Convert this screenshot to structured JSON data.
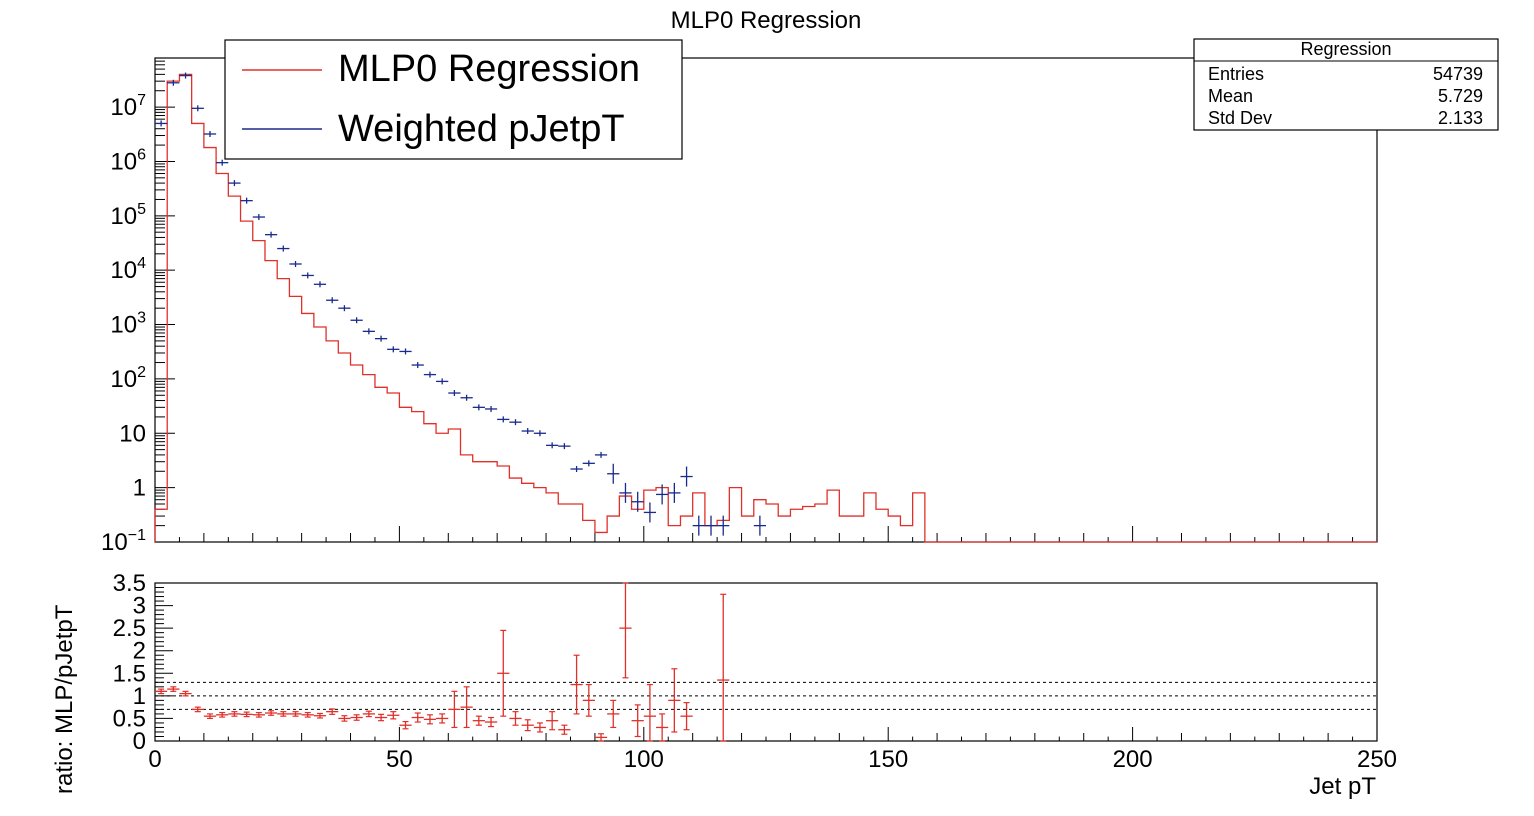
{
  "colors": {
    "mlp": "#e0302a",
    "weighted": "#1a2a8c",
    "axis": "#000000",
    "background": "#ffffff"
  },
  "chart_data": [
    {
      "type": "line",
      "title": "MLP0 Regression",
      "ylog": true,
      "xlim": [
        0,
        250
      ],
      "ylim": [
        0.1,
        80000000
      ],
      "y_tick_labels": [
        {
          "v": 0.1,
          "base": "10",
          "exp": "−1"
        },
        {
          "v": 1,
          "base": "1",
          "exp": ""
        },
        {
          "v": 10,
          "base": "10",
          "exp": ""
        },
        {
          "v": 100,
          "base": "10",
          "exp": "2"
        },
        {
          "v": 1000,
          "base": "10",
          "exp": "3"
        },
        {
          "v": 10000,
          "base": "10",
          "exp": "4"
        },
        {
          "v": 100000,
          "base": "10",
          "exp": "5"
        },
        {
          "v": 1000000,
          "base": "10",
          "exp": "6"
        },
        {
          "v": 10000000,
          "base": "10",
          "exp": "7"
        }
      ],
      "legend": {
        "placement": "top-left",
        "entries": [
          "MLP0 Regression",
          "Weighted pJetpT"
        ]
      },
      "stats_box": {
        "title": "Regression",
        "rows": [
          {
            "label": "Entries",
            "value": "54739"
          },
          {
            "label": "Mean",
            "value": "5.729"
          },
          {
            "label": "Std Dev",
            "value": "2.133"
          }
        ]
      },
      "bin_width": 2.5,
      "series": [
        {
          "name": "MLP0 Regression",
          "style": "step",
          "values": [
            0.4,
            30000000.0,
            40000000.0,
            5000000.0,
            1800000.0,
            600000.0,
            230000.0,
            80000.0,
            35000.0,
            15000.0,
            7000.0,
            3300.0,
            1600.0,
            900,
            500,
            300,
            180,
            120,
            70,
            55,
            30,
            25,
            15,
            10,
            12,
            4,
            3,
            3,
            2.5,
            1.5,
            1.2,
            1,
            0.8,
            0.5,
            0.5,
            0.25,
            0.15,
            0.3,
            0.7,
            0.4,
            0.9,
            1,
            0.2,
            0.3,
            0.8,
            0.2,
            0.25,
            1,
            0.3,
            0.6,
            0.5,
            0.3,
            0.4,
            0.45,
            0.5,
            0.9,
            0.3,
            0.3,
            0.8,
            0.4,
            0.3,
            0.2,
            0.8,
            0.1,
            0.1,
            0.1,
            0.1,
            0.1,
            0.1,
            0.1,
            0.1,
            0.1,
            0.1,
            0.1,
            0.1,
            0.1,
            0.1,
            0.1,
            0.1,
            0.1,
            0.1,
            0.1,
            0.1,
            0.1,
            0.1,
            0.1,
            0.1,
            0.1,
            0.1,
            0.1,
            0.1,
            0.1,
            0.1,
            0.1,
            0.1,
            0.1,
            0.1,
            0.1,
            0.1,
            0.1
          ]
        },
        {
          "name": "Weighted pJetpT",
          "style": "points",
          "points": [
            {
              "x": 1.25,
              "y": 5000000
            },
            {
              "x": 3.75,
              "y": 28000000
            },
            {
              "x": 6.25,
              "y": 38000000
            },
            {
              "x": 8.75,
              "y": 9500000
            },
            {
              "x": 11.25,
              "y": 3200000
            },
            {
              "x": 13.75,
              "y": 950000
            },
            {
              "x": 16.25,
              "y": 400000
            },
            {
              "x": 18.75,
              "y": 190000
            },
            {
              "x": 21.25,
              "y": 95000
            },
            {
              "x": 23.75,
              "y": 45000
            },
            {
              "x": 26.25,
              "y": 25000
            },
            {
              "x": 28.75,
              "y": 13000
            },
            {
              "x": 31.25,
              "y": 8000
            },
            {
              "x": 33.75,
              "y": 5500
            },
            {
              "x": 36.25,
              "y": 2800
            },
            {
              "x": 38.75,
              "y": 2000
            },
            {
              "x": 41.25,
              "y": 1200
            },
            {
              "x": 43.75,
              "y": 750
            },
            {
              "x": 46.25,
              "y": 550
            },
            {
              "x": 48.75,
              "y": 350
            },
            {
              "x": 51.25,
              "y": 320
            },
            {
              "x": 53.75,
              "y": 180
            },
            {
              "x": 56.25,
              "y": 120
            },
            {
              "x": 58.75,
              "y": 90
            },
            {
              "x": 61.25,
              "y": 55
            },
            {
              "x": 63.75,
              "y": 45
            },
            {
              "x": 66.25,
              "y": 30
            },
            {
              "x": 68.75,
              "y": 28
            },
            {
              "x": 71.25,
              "y": 18
            },
            {
              "x": 73.75,
              "y": 16
            },
            {
              "x": 76.25,
              "y": 11
            },
            {
              "x": 78.75,
              "y": 10
            },
            {
              "x": 81.25,
              "y": 6
            },
            {
              "x": 83.75,
              "y": 5.8
            },
            {
              "x": 86.25,
              "y": 2.2
            },
            {
              "x": 88.75,
              "y": 2.8
            },
            {
              "x": 91.25,
              "y": 4
            },
            {
              "x": 93.75,
              "y": 1.8
            },
            {
              "x": 96.25,
              "y": 0.8
            },
            {
              "x": 98.75,
              "y": 0.55
            },
            {
              "x": 101.25,
              "y": 0.35
            },
            {
              "x": 103.75,
              "y": 0.75
            },
            {
              "x": 106.25,
              "y": 0.8
            },
            {
              "x": 108.75,
              "y": 1.6
            },
            {
              "x": 111.25,
              "y": 0.2
            },
            {
              "x": 113.75,
              "y": 0.2
            },
            {
              "x": 116.25,
              "y": 0.2
            },
            {
              "x": 123.75,
              "y": 0.2
            }
          ]
        }
      ]
    },
    {
      "type": "scatter",
      "xlabel": "Jet pT",
      "ylabel": "ratio: MLP/pJetpT",
      "xlim": [
        0,
        250
      ],
      "ylim": [
        0,
        3.5
      ],
      "x_tick_labels": [
        "0",
        "50",
        "100",
        "150",
        "200",
        "250"
      ],
      "y_tick_labels": [
        "0",
        "0.5",
        "1",
        "1.5",
        "2",
        "2.5",
        "3",
        "3.5"
      ],
      "reference_lines": [
        0.7,
        1.0,
        1.3
      ],
      "series": [
        {
          "name": "",
          "points": [
            {
              "x": 1.25,
              "y": 1.1,
              "err": 0.05
            },
            {
              "x": 3.75,
              "y": 1.15,
              "err": 0.05
            },
            {
              "x": 6.25,
              "y": 1.05,
              "err": 0.05
            },
            {
              "x": 8.75,
              "y": 0.7,
              "err": 0.05
            },
            {
              "x": 11.25,
              "y": 0.55,
              "err": 0.05
            },
            {
              "x": 13.75,
              "y": 0.58,
              "err": 0.05
            },
            {
              "x": 16.25,
              "y": 0.6,
              "err": 0.05
            },
            {
              "x": 18.75,
              "y": 0.59,
              "err": 0.05
            },
            {
              "x": 21.25,
              "y": 0.58,
              "err": 0.05
            },
            {
              "x": 23.75,
              "y": 0.62,
              "err": 0.05
            },
            {
              "x": 26.25,
              "y": 0.6,
              "err": 0.05
            },
            {
              "x": 28.75,
              "y": 0.6,
              "err": 0.05
            },
            {
              "x": 31.25,
              "y": 0.58,
              "err": 0.05
            },
            {
              "x": 33.75,
              "y": 0.56,
              "err": 0.05
            },
            {
              "x": 36.25,
              "y": 0.65,
              "err": 0.06
            },
            {
              "x": 38.75,
              "y": 0.5,
              "err": 0.06
            },
            {
              "x": 41.25,
              "y": 0.52,
              "err": 0.06
            },
            {
              "x": 43.75,
              "y": 0.6,
              "err": 0.06
            },
            {
              "x": 46.25,
              "y": 0.52,
              "err": 0.07
            },
            {
              "x": 48.75,
              "y": 0.57,
              "err": 0.08
            },
            {
              "x": 51.25,
              "y": 0.35,
              "err": 0.08
            },
            {
              "x": 53.75,
              "y": 0.52,
              "err": 0.1
            },
            {
              "x": 56.25,
              "y": 0.48,
              "err": 0.1
            },
            {
              "x": 58.75,
              "y": 0.5,
              "err": 0.1
            },
            {
              "x": 61.25,
              "y": 0.7,
              "err": 0.4
            },
            {
              "x": 63.75,
              "y": 0.75,
              "err": 0.45
            },
            {
              "x": 66.25,
              "y": 0.45,
              "err": 0.1
            },
            {
              "x": 68.75,
              "y": 0.42,
              "err": 0.1
            },
            {
              "x": 71.25,
              "y": 1.5,
              "err": 0.95
            },
            {
              "x": 73.75,
              "y": 0.5,
              "err": 0.15
            },
            {
              "x": 76.25,
              "y": 0.35,
              "err": 0.12
            },
            {
              "x": 78.75,
              "y": 0.3,
              "err": 0.1
            },
            {
              "x": 81.25,
              "y": 0.45,
              "err": 0.2
            },
            {
              "x": 83.75,
              "y": 0.25,
              "err": 0.1
            },
            {
              "x": 86.25,
              "y": 1.25,
              "err": 0.65
            },
            {
              "x": 88.75,
              "y": 0.9,
              "err": 0.35
            },
            {
              "x": 91.25,
              "y": 0.08,
              "err": 0.08
            },
            {
              "x": 93.75,
              "y": 0.6,
              "err": 0.3
            },
            {
              "x": 96.25,
              "y": 2.5,
              "err": 1.1
            },
            {
              "x": 98.75,
              "y": 0.45,
              "err": 0.35
            },
            {
              "x": 101.25,
              "y": 0.55,
              "err": 0.7
            },
            {
              "x": 103.75,
              "y": 0.3,
              "err": 0.3
            },
            {
              "x": 106.25,
              "y": 0.9,
              "err": 0.7
            },
            {
              "x": 108.75,
              "y": 0.55,
              "err": 0.3
            },
            {
              "x": 116.25,
              "y": 1.35,
              "err": 1.9
            }
          ]
        }
      ]
    }
  ]
}
